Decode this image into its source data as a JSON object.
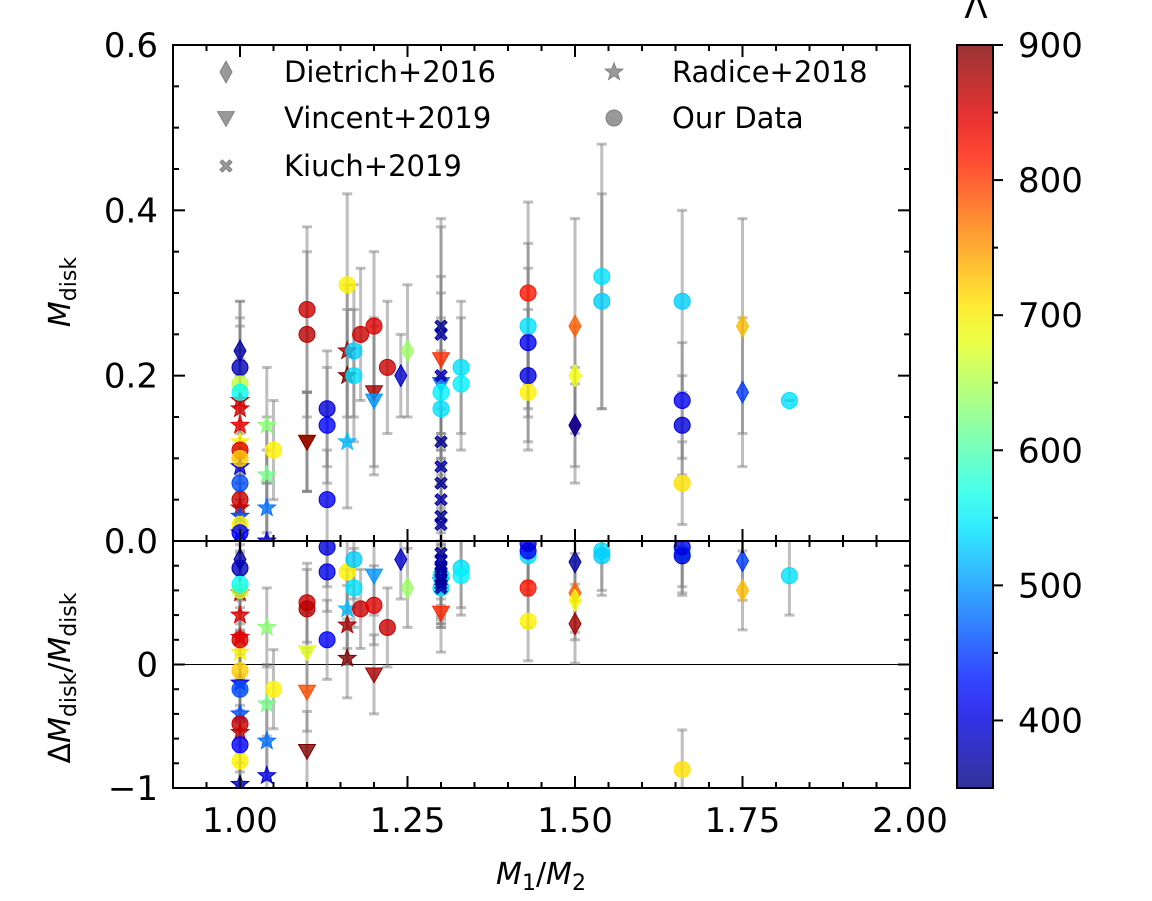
{
  "chart_data": {
    "type": "scatter",
    "panels": [
      {
        "name": "top",
        "ylabel": "M_disk",
        "ylim": [
          0.0,
          0.6
        ],
        "yticks": [
          "0.0",
          "0.2",
          "0.4",
          "0.6"
        ],
        "ytick_values": [
          0.0,
          0.2,
          0.4,
          0.6
        ]
      },
      {
        "name": "bottom",
        "ylabel": "ΔM_disk/M_disk",
        "ylim": [
          -1.0,
          1.0
        ],
        "yticks": [
          "0",
          "−1"
        ],
        "ytick_values": [
          0,
          -1
        ],
        "reference_line": 0
      }
    ],
    "xlabel": "M_1/M_2",
    "xlim": [
      0.9,
      2.0
    ],
    "xticks": [
      "1.00",
      "1.25",
      "1.50",
      "1.75",
      "2.00"
    ],
    "xtick_values": [
      1.0,
      1.25,
      1.5,
      1.75,
      2.0
    ],
    "colorbar": {
      "label": "Λ",
      "range": [
        350,
        900
      ],
      "ticks": [
        "400",
        "500",
        "600",
        "700",
        "800",
        "900"
      ],
      "tick_values": [
        400,
        500,
        600,
        700,
        800,
        900
      ],
      "colormap": "jet"
    },
    "legend": {
      "placement": "top",
      "entries": [
        {
          "label": "Dietrich+2016",
          "marker": "diamond"
        },
        {
          "label": "Radice+2018",
          "marker": "star"
        },
        {
          "label": "Vincent+2019",
          "marker": "triangle-down"
        },
        {
          "label": "Our Data",
          "marker": "circle"
        },
        {
          "label": "Kiuch+2019",
          "marker": "x"
        }
      ],
      "marker_color": "#808080"
    },
    "series": [
      {
        "name": "Dietrich+2016",
        "marker": "diamond",
        "points": [
          {
            "q": 1.0,
            "m": 0.23,
            "err": 0.06,
            "rel": 0.85,
            "lam": 370
          },
          {
            "q": 1.25,
            "m": 0.23,
            "err": 0.08,
            "rel": 0.62,
            "lam": 640
          },
          {
            "q": 1.24,
            "m": 0.2,
            "err": 0.05,
            "rel": 0.85,
            "lam": 390
          },
          {
            "q": 1.5,
            "m": 0.26,
            "err": 0.13,
            "rel": 0.58,
            "lam": 780
          },
          {
            "q": 1.5,
            "m": 0.2,
            "err": 0.06,
            "rel": 0.52,
            "lam": 690
          },
          {
            "q": 1.5,
            "m": 0.14,
            "err": 0.07,
            "rel": 0.33,
            "lam": 880
          },
          {
            "q": 1.5,
            "m": 0.14,
            "err": 0.05,
            "rel": 0.83,
            "lam": 370
          },
          {
            "q": 1.75,
            "m": 0.26,
            "err": 0.13,
            "rel": 0.6,
            "lam": 730
          },
          {
            "q": 1.75,
            "m": 0.18,
            "err": 0.09,
            "rel": 0.84,
            "lam": 450
          }
        ]
      },
      {
        "name": "Radice+2018",
        "marker": "star",
        "points": [
          {
            "q": 1.0,
            "m": 0.17,
            "err": 0.06,
            "rel": 0.58,
            "lam": 860
          },
          {
            "q": 1.0,
            "m": 0.16,
            "err": 0.06,
            "rel": 0.4,
            "lam": 850
          },
          {
            "q": 1.0,
            "m": 0.14,
            "err": 0.06,
            "rel": 0.22,
            "lam": 840
          },
          {
            "q": 1.0,
            "m": 0.12,
            "err": 0.05,
            "rel": 0.1,
            "lam": 700
          },
          {
            "q": 1.0,
            "m": 0.09,
            "err": 0.05,
            "rel": -0.15,
            "lam": 400
          },
          {
            "q": 1.0,
            "m": 0.04,
            "err": 0.05,
            "rel": -0.55,
            "lam": 870
          },
          {
            "q": 1.0,
            "m": 0.01,
            "err": 0.05,
            "rel": -0.97,
            "lam": 380
          },
          {
            "q": 1.0,
            "m": 0.03,
            "err": 0.05,
            "rel": -0.4,
            "lam": 460
          },
          {
            "q": 1.04,
            "m": 0.14,
            "err": 0.07,
            "rel": 0.3,
            "lam": 630
          },
          {
            "q": 1.04,
            "m": 0.08,
            "err": 0.07,
            "rel": -0.32,
            "lam": 620
          },
          {
            "q": 1.04,
            "m": 0.04,
            "err": 0.07,
            "rel": -0.62,
            "lam": 480
          },
          {
            "q": 1.04,
            "m": 0.0,
            "err": 0.07,
            "rel": -0.9,
            "lam": 400
          },
          {
            "q": 1.16,
            "m": 0.23,
            "err": 0.08,
            "rel": 0.32,
            "lam": 880
          },
          {
            "q": 1.16,
            "m": 0.2,
            "err": 0.08,
            "rel": 0.05,
            "lam": 900
          },
          {
            "q": 1.16,
            "m": 0.12,
            "err": 0.08,
            "rel": 0.45,
            "lam": 520
          }
        ]
      },
      {
        "name": "Vincent+2019",
        "marker": "triangle-down",
        "points": [
          {
            "q": 1.1,
            "m": 0.12,
            "err": 0.06,
            "rel": 0.1,
            "lam": 680
          },
          {
            "q": 1.1,
            "m": 0.12,
            "err": 0.06,
            "rel": -0.22,
            "lam": 790
          },
          {
            "q": 1.1,
            "m": 0.12,
            "err": 0.06,
            "rel": -0.7,
            "lam": 900
          },
          {
            "q": 1.2,
            "m": 0.18,
            "err": 0.09,
            "rel": -0.08,
            "lam": 880
          },
          {
            "q": 1.2,
            "m": 0.17,
            "err": 0.09,
            "rel": 0.72,
            "lam": 500
          },
          {
            "q": 1.3,
            "m": 0.22,
            "err": 0.1,
            "rel": 0.42,
            "lam": 810
          },
          {
            "q": 1.3,
            "m": 0.19,
            "err": 0.08,
            "rel": 0.65,
            "lam": 480
          }
        ]
      },
      {
        "name": "Our Data",
        "marker": "circle",
        "points": [
          {
            "q": 1.0,
            "m": 0.21,
            "err": 0.08,
            "rel": 0.78,
            "lam": 380
          },
          {
            "q": 1.0,
            "m": 0.19,
            "err": 0.08,
            "rel": 0.6,
            "lam": 660
          },
          {
            "q": 1.0,
            "m": 0.18,
            "err": 0.08,
            "rel": 0.65,
            "lam": 560
          },
          {
            "q": 1.0,
            "m": 0.11,
            "err": 0.06,
            "rel": 0.2,
            "lam": 850
          },
          {
            "q": 1.0,
            "m": 0.1,
            "err": 0.06,
            "rel": -0.05,
            "lam": 720
          },
          {
            "q": 1.0,
            "m": 0.07,
            "err": 0.05,
            "rel": -0.2,
            "lam": 460
          },
          {
            "q": 1.0,
            "m": 0.05,
            "err": 0.05,
            "rel": -0.48,
            "lam": 860
          },
          {
            "q": 1.0,
            "m": 0.02,
            "err": 0.05,
            "rel": -0.78,
            "lam": 700
          },
          {
            "q": 1.0,
            "m": 0.01,
            "err": 0.05,
            "rel": -0.65,
            "lam": 420
          },
          {
            "q": 1.05,
            "m": 0.11,
            "err": 0.06,
            "rel": -0.2,
            "lam": 700
          },
          {
            "q": 1.1,
            "m": 0.28,
            "err": 0.1,
            "rel": 0.5,
            "lam": 860
          },
          {
            "q": 1.1,
            "m": 0.25,
            "err": 0.1,
            "rel": 0.45,
            "lam": 870
          },
          {
            "q": 1.13,
            "m": 0.16,
            "err": 0.07,
            "rel": 0.95,
            "lam": 400
          },
          {
            "q": 1.13,
            "m": 0.14,
            "err": 0.07,
            "rel": 0.2,
            "lam": 420
          },
          {
            "q": 1.13,
            "m": 0.05,
            "err": 0.06,
            "rel": 0.75,
            "lam": 410
          },
          {
            "q": 1.16,
            "m": 0.31,
            "err": 0.11,
            "rel": 0.75,
            "lam": 700
          },
          {
            "q": 1.17,
            "m": 0.23,
            "err": 0.08,
            "rel": 0.85,
            "lam": 530
          },
          {
            "q": 1.17,
            "m": 0.2,
            "err": 0.08,
            "rel": 0.62,
            "lam": 540
          },
          {
            "q": 1.18,
            "m": 0.25,
            "err": 0.08,
            "rel": 0.45,
            "lam": 860
          },
          {
            "q": 1.2,
            "m": 0.26,
            "err": 0.09,
            "rel": 0.48,
            "lam": 850
          },
          {
            "q": 1.22,
            "m": 0.21,
            "err": 0.08,
            "rel": 0.3,
            "lam": 860
          },
          {
            "q": 1.3,
            "m": 0.18,
            "err": 0.07,
            "rel": 0.72,
            "lam": 550
          },
          {
            "q": 1.3,
            "m": 0.16,
            "err": 0.07,
            "rel": 0.62,
            "lam": 540
          },
          {
            "q": 1.33,
            "m": 0.21,
            "err": 0.08,
            "rel": 0.78,
            "lam": 540
          },
          {
            "q": 1.33,
            "m": 0.19,
            "err": 0.08,
            "rel": 0.72,
            "lam": 550
          },
          {
            "q": 1.43,
            "m": 0.3,
            "err": 0.11,
            "rel": 0.62,
            "lam": 820
          },
          {
            "q": 1.43,
            "m": 0.26,
            "err": 0.1,
            "rel": 0.88,
            "lam": 540
          },
          {
            "q": 1.43,
            "m": 0.24,
            "err": 0.09,
            "rel": 0.92,
            "lam": 410
          },
          {
            "q": 1.43,
            "m": 0.2,
            "err": 0.08,
            "rel": 0.98,
            "lam": 400
          },
          {
            "q": 1.43,
            "m": 0.18,
            "err": 0.07,
            "rel": 0.35,
            "lam": 700
          },
          {
            "q": 1.54,
            "m": 0.32,
            "err": 0.16,
            "rel": 0.92,
            "lam": 540
          },
          {
            "q": 1.54,
            "m": 0.29,
            "err": 0.13,
            "rel": 0.88,
            "lam": 530
          },
          {
            "q": 1.66,
            "m": 0.29,
            "err": 0.11,
            "rel": 0.9,
            "lam": 530
          },
          {
            "q": 1.66,
            "m": 0.17,
            "err": 0.07,
            "rel": 0.95,
            "lam": 410
          },
          {
            "q": 1.66,
            "m": 0.14,
            "err": 0.06,
            "rel": 0.88,
            "lam": 400
          },
          {
            "q": 1.66,
            "m": 0.07,
            "err": 0.05,
            "rel": -0.85,
            "lam": 710
          },
          {
            "q": 1.82,
            "m": 0.17,
            "err": 0.0,
            "rel": 0.72,
            "lam": 540
          }
        ]
      },
      {
        "name": "Kiuch+2019",
        "marker": "x",
        "points": [
          {
            "q": 1.3,
            "m": 0.26,
            "err": 0.13,
            "rel": 0.9,
            "lam": 360
          },
          {
            "q": 1.3,
            "m": 0.25,
            "err": 0.13,
            "rel": 0.85,
            "lam": 370
          },
          {
            "q": 1.3,
            "m": 0.2,
            "err": 0.1,
            "rel": 0.8,
            "lam": 380
          },
          {
            "q": 1.3,
            "m": 0.12,
            "err": 0.08,
            "rel": 0.78,
            "lam": 360
          },
          {
            "q": 1.3,
            "m": 0.09,
            "err": 0.07,
            "rel": 0.75,
            "lam": 370
          },
          {
            "q": 1.3,
            "m": 0.07,
            "err": 0.06,
            "rel": 0.7,
            "lam": 360
          },
          {
            "q": 1.3,
            "m": 0.05,
            "err": 0.05,
            "rel": 0.68,
            "lam": 370
          },
          {
            "q": 1.3,
            "m": 0.03,
            "err": 0.05,
            "rel": 0.65,
            "lam": 360
          },
          {
            "q": 1.3,
            "m": 0.02,
            "err": 0.05,
            "rel": 0.62,
            "lam": 370
          }
        ]
      }
    ]
  }
}
